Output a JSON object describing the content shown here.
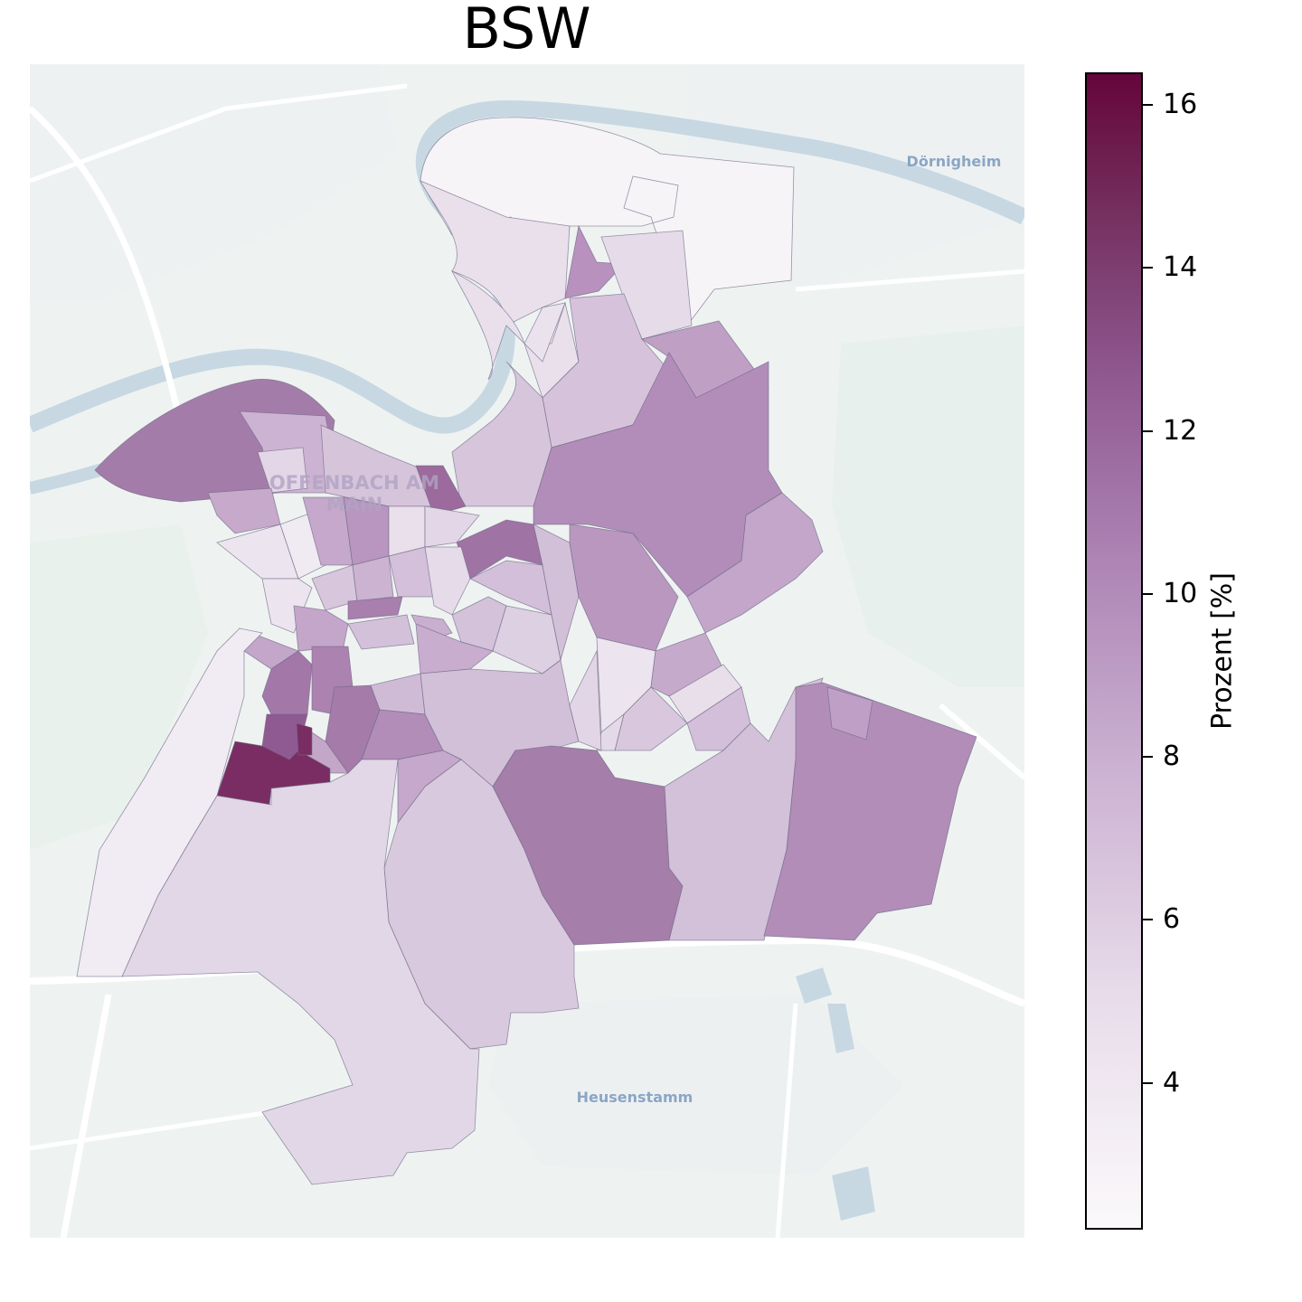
{
  "title": "BSW",
  "map": {
    "place_labels": [
      "Dörnigheim",
      "OFFENBACH AM",
      "MAIN",
      "Heusenstamm"
    ],
    "region_fill_scale": [
      "#f6f3f7",
      "#e6dbe9",
      "#d8c6dd",
      "#c4a6c8",
      "#b18db8",
      "#a57aa8",
      "#935a8d",
      "#7a2d63"
    ]
  },
  "colorbar": {
    "label": "Prozent [%]",
    "ticks": [
      "4",
      "6",
      "8",
      "10",
      "12",
      "14",
      "16"
    ],
    "range": [
      2.2,
      16.4
    ],
    "colors": [
      "#fbf9fb",
      "#65053b"
    ]
  }
}
